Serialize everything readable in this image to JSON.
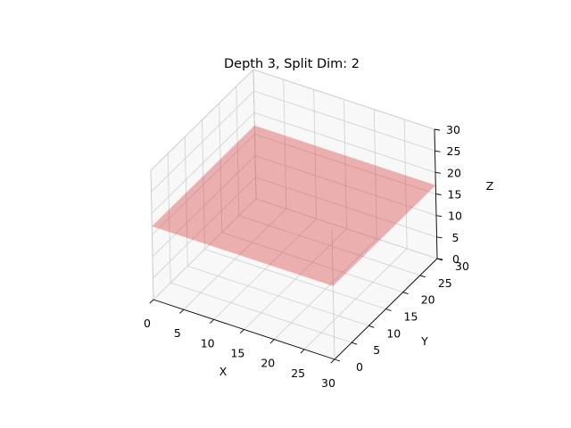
{
  "chart_data": {
    "type": "surface3d",
    "title": "Depth 3, Split Dim: 2",
    "xlabel": "X",
    "ylabel": "Y",
    "zlabel": "Z",
    "xlim": [
      0,
      30
    ],
    "ylim": [
      0,
      30
    ],
    "zlim": [
      0,
      30
    ],
    "x_ticks": [
      0,
      5,
      10,
      15,
      20,
      25,
      30
    ],
    "y_ticks": [
      0,
      5,
      10,
      15,
      20,
      25,
      30
    ],
    "z_ticks": [
      0,
      5,
      10,
      15,
      20,
      25,
      30
    ],
    "grid": true,
    "planes": [
      {
        "split_dim": 2,
        "z": 17,
        "x_range": [
          0,
          30
        ],
        "y_range": [
          0,
          30
        ],
        "color": "#d62728",
        "opacity": 0.35
      }
    ]
  }
}
